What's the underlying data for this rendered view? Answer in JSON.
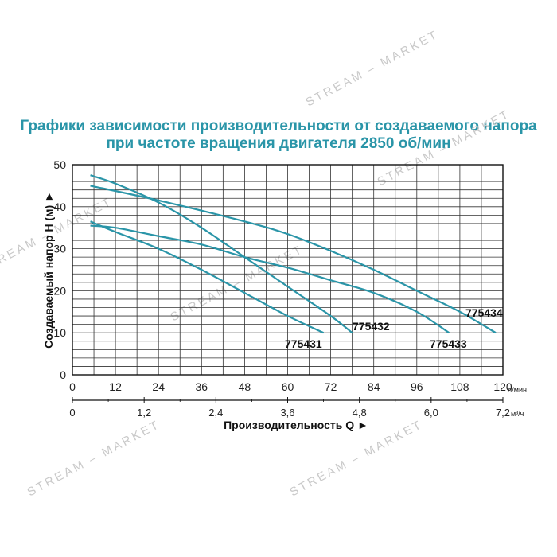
{
  "title_lines": [
    "Графики зависимости производительности от создаваемого напора",
    "при частоте вращения двигателя 2850 об/мин"
  ],
  "watermark": "STREAM – MARKET",
  "colors": {
    "title": "#2a95a8",
    "curve": "#2a95a8",
    "grid": "#333333",
    "axis": "#111111"
  },
  "chart_data": {
    "type": "line",
    "title": "Графики зависимости производительности от создаваемого напора при частоте вращения двигателя 2850 об/мин",
    "ylabel": "Создаваемый напор H (м) ►",
    "xlabel": "Производительность Q ►",
    "ylim": [
      0,
      50
    ],
    "yticks": [
      0,
      10,
      20,
      30,
      40,
      50
    ],
    "xlim": [
      0,
      120
    ],
    "xticks": [
      0,
      12,
      24,
      36,
      48,
      60,
      72,
      84,
      96,
      108,
      120
    ],
    "x_unit": "л/мин",
    "x2_ticks": [
      "0",
      "1,2",
      "2,4",
      "3,6",
      "4,8",
      "6,0",
      "7,2"
    ],
    "x2_unit": "м³/ч",
    "grid": true,
    "series": [
      {
        "name": "775431",
        "x": [
          5,
          12,
          24,
          36,
          48,
          60,
          70
        ],
        "y": [
          36.5,
          34,
          30,
          25,
          19.5,
          14,
          10
        ]
      },
      {
        "name": "775432",
        "x": [
          5,
          12,
          24,
          36,
          48,
          60,
          72,
          78
        ],
        "y": [
          47.5,
          45.5,
          41,
          35,
          28,
          21,
          14,
          10
        ]
      },
      {
        "name": "775433",
        "x": [
          5,
          12,
          24,
          36,
          48,
          60,
          72,
          84,
          96,
          105
        ],
        "y": [
          35.5,
          35,
          33,
          31,
          28,
          25.5,
          22.5,
          19.5,
          15,
          10
        ]
      },
      {
        "name": "775434",
        "x": [
          5,
          24,
          48,
          60,
          72,
          84,
          96,
          108,
          118
        ],
        "y": [
          45,
          41.5,
          36.5,
          33.5,
          29.5,
          25,
          20,
          15,
          10
        ]
      }
    ]
  }
}
